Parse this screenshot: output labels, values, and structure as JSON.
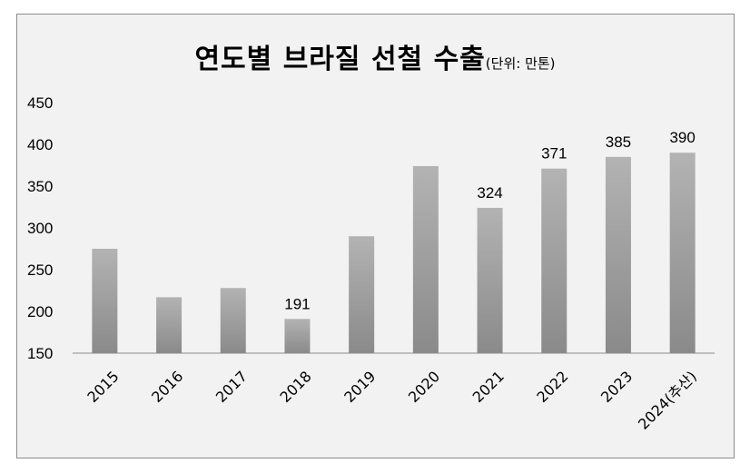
{
  "chart_data": {
    "type": "bar",
    "title": "연도별 브라질 선철 수출",
    "unit": "(단위: 만톤)",
    "categories": [
      "2015",
      "2016",
      "2017",
      "2018",
      "2019",
      "2020",
      "2021",
      "2022",
      "2023",
      "2024(추산)"
    ],
    "values": [
      275,
      217,
      228,
      191,
      290,
      374,
      324,
      371,
      385,
      390
    ],
    "data_labels": [
      "",
      "",
      "",
      "191",
      "",
      "",
      "324",
      "371",
      "385",
      "390"
    ],
    "ylim": [
      150,
      450
    ],
    "yticks": [
      "150",
      "200",
      "250",
      "300",
      "350",
      "400",
      "450"
    ],
    "grid": false,
    "bar_color_top": "#b3b3b3",
    "bar_color_bottom": "#8a8a8a"
  }
}
